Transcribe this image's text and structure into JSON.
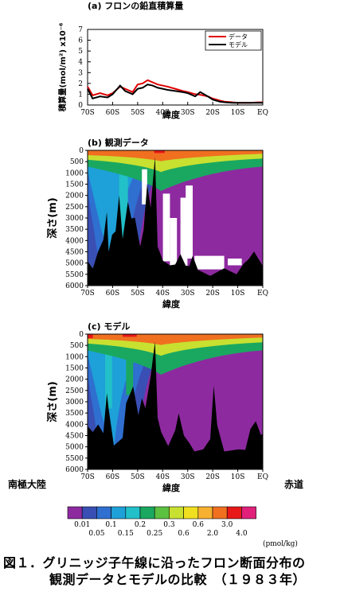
{
  "chart_data": [
    {
      "type": "line",
      "panel": "(a)",
      "title": "フロンの鉛直積算量",
      "ylabel": "積算量(mol/m²) x10⁻⁶",
      "xlabel": "緯度",
      "ylim": [
        0,
        7
      ],
      "yticks": [
        "0",
        "1",
        "2",
        "3",
        "4",
        "5",
        "6",
        "7"
      ],
      "xticks": [
        "70S",
        "60S",
        "50S",
        "40S",
        "30S",
        "20S",
        "10S",
        "EQ"
      ],
      "x": [
        -70,
        -68,
        -65,
        -62,
        -60,
        -57,
        -55,
        -52,
        -50,
        -48,
        -46,
        -44,
        -42,
        -40,
        -38,
        -35,
        -32,
        -30,
        -27,
        -25,
        -22,
        -20,
        -17,
        -15,
        -12,
        -10,
        -7,
        -5,
        -2,
        0
      ],
      "series": [
        {
          "name": "データ",
          "color": "#e00000",
          "values": [
            1.7,
            0.9,
            1.1,
            0.9,
            1.1,
            1.7,
            1.5,
            1.2,
            1.9,
            2.0,
            2.3,
            2.1,
            1.9,
            1.8,
            1.7,
            1.5,
            1.3,
            1.2,
            1.0,
            0.95,
            0.8,
            0.6,
            0.4,
            0.3,
            0.25,
            0.2,
            0.2,
            0.2,
            0.25,
            0.25
          ]
        },
        {
          "name": "モデル",
          "color": "#000000",
          "values": [
            1.5,
            0.6,
            0.8,
            0.7,
            1.0,
            1.8,
            1.3,
            1.0,
            1.5,
            1.6,
            1.9,
            1.8,
            1.6,
            1.5,
            1.4,
            1.3,
            1.2,
            1.1,
            0.8,
            1.2,
            0.8,
            0.5,
            0.3,
            0.25,
            0.2,
            0.2,
            0.2,
            0.2,
            0.2,
            0.2
          ]
        }
      ]
    },
    {
      "type": "heatmap",
      "panel": "(b)",
      "title": "観測データ",
      "ylabel": "深さ(m)",
      "xlabel": "緯度",
      "yticks": [
        "0",
        "500",
        "1000",
        "1500",
        "2000",
        "2500",
        "3000",
        "3500",
        "4000",
        "4500",
        "5000",
        "5500",
        "6000"
      ],
      "xticks": [
        "70S",
        "60S",
        "50S",
        "40S",
        "30S",
        "20S",
        "10S",
        "EQ"
      ],
      "ylim": [
        6000,
        0
      ]
    },
    {
      "type": "heatmap",
      "panel": "(c)",
      "title": "モデル",
      "ylabel": "深さ(m)",
      "xlabel": "緯度",
      "yticks": [
        "0",
        "500",
        "1000",
        "1500",
        "2000",
        "2500",
        "3000",
        "3500",
        "4000",
        "4500",
        "5000",
        "5500",
        "6000"
      ],
      "xticks": [
        "70S",
        "60S",
        "50S",
        "40S",
        "30S",
        "20S",
        "10S",
        "EQ"
      ],
      "ylim": [
        6000,
        0
      ]
    }
  ],
  "colorbar": {
    "colors": [
      "#8e2aa0",
      "#3a4fb4",
      "#2f6fd0",
      "#1ea0d8",
      "#22c0c8",
      "#1aa860",
      "#5cc040",
      "#c8e030",
      "#f0e020",
      "#f8b030",
      "#f07020",
      "#e81818",
      "#e0207a"
    ],
    "ticks_top_row": [
      "0.01",
      "0.1",
      "0.2",
      "0.3",
      "0.6",
      "3.0"
    ],
    "ticks_bottom_row": [
      "0.05",
      "0.15",
      "0.25",
      "0.6",
      "2.0",
      "4.0"
    ],
    "unit": "(pmol/kg)"
  },
  "labels": {
    "south_pole": "南極大陸",
    "equator": "赤道"
  },
  "caption": {
    "line1": "図１．グリニッジ子午線に沿ったフロン断面分布の",
    "line2": "観測データとモデルの比較　（１９８３年）"
  }
}
